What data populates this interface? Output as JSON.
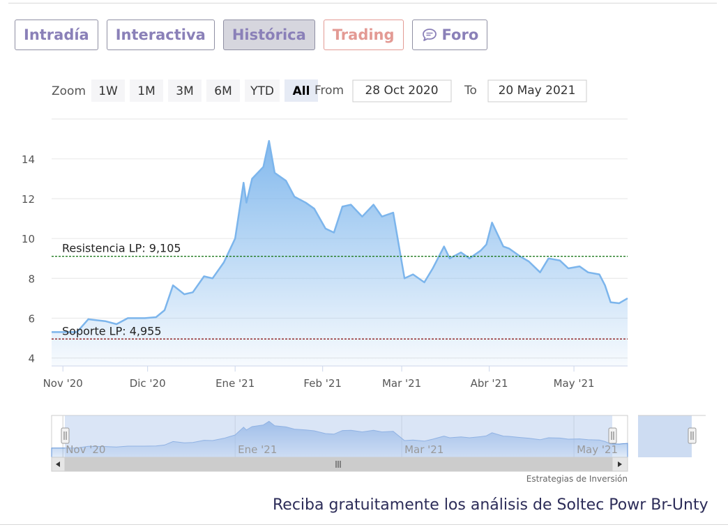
{
  "tabs": [
    {
      "label": "Intradía",
      "active": false
    },
    {
      "label": "Interactiva",
      "active": false
    },
    {
      "label": "Histórica",
      "active": true
    },
    {
      "label": "Trading",
      "active": false
    },
    {
      "label": "Foro",
      "active": false,
      "icon": "chat-bubble-icon"
    }
  ],
  "range_selector": {
    "zoom_label": "Zoom",
    "buttons": [
      "1W",
      "1M",
      "3M",
      "6M",
      "YTD",
      "All"
    ],
    "selected": "All",
    "from_label": "From",
    "from_value": "28 Oct 2020",
    "to_label": "To",
    "to_value": "20 May 2021"
  },
  "chart_data": {
    "type": "area",
    "x": [
      "2020-10-28",
      "2020-11-02",
      "2020-11-06",
      "2020-11-10",
      "2020-11-16",
      "2020-11-20",
      "2020-11-24",
      "2020-11-30",
      "2020-12-04",
      "2020-12-07",
      "2020-12-10",
      "2020-12-14",
      "2020-12-17",
      "2020-12-21",
      "2020-12-24",
      "2020-12-28",
      "2020-12-30",
      "2021-01-01",
      "2021-01-04",
      "2021-01-05",
      "2021-01-07",
      "2021-01-11",
      "2021-01-13",
      "2021-01-15",
      "2021-01-19",
      "2021-01-22",
      "2021-01-26",
      "2021-01-29",
      "2021-02-02",
      "2021-02-05",
      "2021-02-08",
      "2021-02-11",
      "2021-02-15",
      "2021-02-19",
      "2021-02-22",
      "2021-02-26",
      "2021-03-02",
      "2021-03-05",
      "2021-03-09",
      "2021-03-12",
      "2021-03-16",
      "2021-03-18",
      "2021-03-22",
      "2021-03-25",
      "2021-03-29",
      "2021-03-31",
      "2021-04-02",
      "2021-04-06",
      "2021-04-08",
      "2021-04-12",
      "2021-04-15",
      "2021-04-19",
      "2021-04-22",
      "2021-04-26",
      "2021-04-29",
      "2021-05-03",
      "2021-05-06",
      "2021-05-10",
      "2021-05-12",
      "2021-05-14",
      "2021-05-17",
      "2021-05-20"
    ],
    "values": [
      5.3,
      5.3,
      5.3,
      5.95,
      5.85,
      5.7,
      6.0,
      6.0,
      6.05,
      6.4,
      7.65,
      7.2,
      7.3,
      8.1,
      8.0,
      8.8,
      9.4,
      10.0,
      12.8,
      11.8,
      13.0,
      13.6,
      14.9,
      13.3,
      12.9,
      12.1,
      11.8,
      11.5,
      10.5,
      10.3,
      11.6,
      11.7,
      11.1,
      11.7,
      11.1,
      11.3,
      8.0,
      8.2,
      7.8,
      8.5,
      9.6,
      9.0,
      9.3,
      9.0,
      9.4,
      9.7,
      10.8,
      9.6,
      9.5,
      9.1,
      8.85,
      8.3,
      9.0,
      8.9,
      8.5,
      8.6,
      8.3,
      8.2,
      7.65,
      6.8,
      6.75,
      7.0
    ],
    "y_ticks": [
      4,
      6,
      8,
      10,
      12,
      14
    ],
    "ylim": [
      3.6,
      16.2
    ],
    "x_tick_labels": [
      {
        "label": "Nov '20",
        "date": "2020-11-01"
      },
      {
        "label": "Dic '20",
        "date": "2020-12-01"
      },
      {
        "label": "Ene '21",
        "date": "2021-01-01"
      },
      {
        "label": "Feb '21",
        "date": "2021-02-01"
      },
      {
        "label": "Mar '21",
        "date": "2021-03-01"
      },
      {
        "label": "Abr '21",
        "date": "2021-04-01"
      },
      {
        "label": "May '21",
        "date": "2021-05-01"
      }
    ],
    "reference_lines": [
      {
        "label": "Resistencia LP: 9,105",
        "value": 9.105,
        "color": "#1f7a1f"
      },
      {
        "label": "Soporte LP: 4,955",
        "value": 4.955,
        "color": "#8b1a1a"
      }
    ],
    "navigator_labels": [
      "Nov '20",
      "Ene '21",
      "Mar '21",
      "May '21"
    ],
    "grid": true,
    "line_color": "#7cb5ec"
  },
  "credit": "Estrategias de Inversión",
  "cta": "Reciba gratuitamente los análisis de Soltec Powr Br-Unty"
}
